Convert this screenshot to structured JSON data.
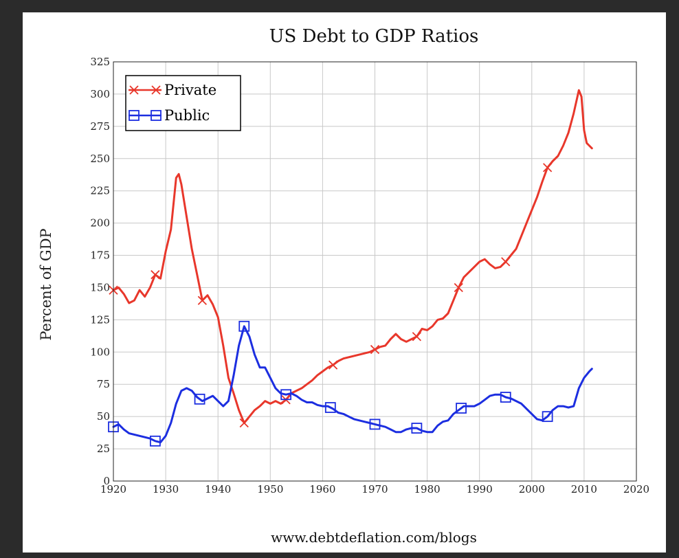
{
  "chart_data": {
    "type": "line",
    "title": "US Debt to GDP Ratios",
    "xlabel": "",
    "ylabel": "Percent of GDP",
    "source": "www.debtdeflation.com/blogs",
    "xlim": [
      1920,
      2020
    ],
    "ylim": [
      0,
      325
    ],
    "xticks": [
      1920,
      1930,
      1940,
      1950,
      1960,
      1970,
      1980,
      1990,
      2000,
      2010,
      2020
    ],
    "yticks": [
      0,
      25,
      50,
      75,
      100,
      125,
      150,
      175,
      200,
      225,
      250,
      275,
      300,
      325
    ],
    "grid": true,
    "legend_position": "top-left",
    "series": [
      {
        "name": "Private",
        "color": "#e8372b",
        "marker": "x",
        "points": [
          [
            1920,
            148
          ],
          [
            1921,
            150
          ],
          [
            1922,
            145
          ],
          [
            1923,
            138
          ],
          [
            1924,
            140
          ],
          [
            1925,
            148
          ],
          [
            1926,
            143
          ],
          [
            1927,
            150
          ],
          [
            1928,
            160
          ],
          [
            1929,
            157
          ],
          [
            1930,
            178
          ],
          [
            1931,
            195
          ],
          [
            1932,
            235
          ],
          [
            1932.5,
            238
          ],
          [
            1933,
            230
          ],
          [
            1934,
            205
          ],
          [
            1935,
            180
          ],
          [
            1936,
            160
          ],
          [
            1937,
            140
          ],
          [
            1938,
            144
          ],
          [
            1939,
            137
          ],
          [
            1940,
            127
          ],
          [
            1941,
            105
          ],
          [
            1942,
            80
          ],
          [
            1943,
            68
          ],
          [
            1944,
            55
          ],
          [
            1945,
            45
          ],
          [
            1946,
            50
          ],
          [
            1947,
            55
          ],
          [
            1948,
            58
          ],
          [
            1949,
            62
          ],
          [
            1950,
            60
          ],
          [
            1951,
            62
          ],
          [
            1952,
            60
          ],
          [
            1953,
            63
          ],
          [
            1954,
            68
          ],
          [
            1955,
            70
          ],
          [
            1956,
            72
          ],
          [
            1957,
            75
          ],
          [
            1958,
            78
          ],
          [
            1959,
            82
          ],
          [
            1960,
            85
          ],
          [
            1961,
            88
          ],
          [
            1962,
            90
          ],
          [
            1963,
            93
          ],
          [
            1964,
            95
          ],
          [
            1965,
            96
          ],
          [
            1966,
            97
          ],
          [
            1967,
            98
          ],
          [
            1968,
            99
          ],
          [
            1969,
            100
          ],
          [
            1970,
            102
          ],
          [
            1971,
            104
          ],
          [
            1972,
            105
          ],
          [
            1973,
            110
          ],
          [
            1974,
            114
          ],
          [
            1975,
            110
          ],
          [
            1976,
            108
          ],
          [
            1977,
            110
          ],
          [
            1978,
            112
          ],
          [
            1979,
            118
          ],
          [
            1980,
            117
          ],
          [
            1981,
            120
          ],
          [
            1982,
            125
          ],
          [
            1983,
            126
          ],
          [
            1984,
            130
          ],
          [
            1985,
            140
          ],
          [
            1986,
            150
          ],
          [
            1987,
            158
          ],
          [
            1988,
            162
          ],
          [
            1989,
            166
          ],
          [
            1990,
            170
          ],
          [
            1991,
            172
          ],
          [
            1992,
            168
          ],
          [
            1993,
            165
          ],
          [
            1994,
            166
          ],
          [
            1995,
            170
          ],
          [
            1996,
            175
          ],
          [
            1997,
            180
          ],
          [
            1998,
            190
          ],
          [
            1999,
            200
          ],
          [
            2000,
            210
          ],
          [
            2001,
            220
          ],
          [
            2002,
            232
          ],
          [
            2003,
            243
          ],
          [
            2004,
            248
          ],
          [
            2005,
            252
          ],
          [
            2006,
            260
          ],
          [
            2007,
            270
          ],
          [
            2008,
            285
          ],
          [
            2009,
            303
          ],
          [
            2009.5,
            298
          ],
          [
            2010,
            272
          ],
          [
            2010.5,
            262
          ],
          [
            2011,
            260
          ],
          [
            2011.5,
            258
          ]
        ],
        "markers_at": [
          1920,
          1928,
          1937,
          1945,
          1953,
          1962,
          1970,
          1978,
          1986,
          1995,
          2003
        ]
      },
      {
        "name": "Public",
        "color": "#1c2ee0",
        "marker": "square",
        "points": [
          [
            1920,
            42
          ],
          [
            1921,
            44
          ],
          [
            1922,
            40
          ],
          [
            1923,
            37
          ],
          [
            1924,
            36
          ],
          [
            1925,
            35
          ],
          [
            1926,
            34
          ],
          [
            1927,
            33
          ],
          [
            1928,
            31
          ],
          [
            1929,
            30
          ],
          [
            1930,
            35
          ],
          [
            1931,
            45
          ],
          [
            1932,
            60
          ],
          [
            1933,
            70
          ],
          [
            1934,
            72
          ],
          [
            1935,
            70
          ],
          [
            1936,
            65
          ],
          [
            1937,
            62
          ],
          [
            1938,
            64
          ],
          [
            1939,
            66
          ],
          [
            1940,
            62
          ],
          [
            1941,
            58
          ],
          [
            1942,
            62
          ],
          [
            1943,
            82
          ],
          [
            1944,
            105
          ],
          [
            1945,
            120
          ],
          [
            1946,
            112
          ],
          [
            1947,
            98
          ],
          [
            1948,
            88
          ],
          [
            1949,
            88
          ],
          [
            1950,
            80
          ],
          [
            1951,
            72
          ],
          [
            1952,
            68
          ],
          [
            1953,
            67
          ],
          [
            1954,
            68
          ],
          [
            1955,
            66
          ],
          [
            1956,
            63
          ],
          [
            1957,
            61
          ],
          [
            1958,
            61
          ],
          [
            1959,
            59
          ],
          [
            1960,
            58
          ],
          [
            1961,
            58
          ],
          [
            1962,
            56
          ],
          [
            1963,
            53
          ],
          [
            1964,
            52
          ],
          [
            1965,
            50
          ],
          [
            1966,
            48
          ],
          [
            1967,
            47
          ],
          [
            1968,
            46
          ],
          [
            1969,
            45
          ],
          [
            1970,
            44
          ],
          [
            1971,
            43
          ],
          [
            1972,
            42
          ],
          [
            1973,
            40
          ],
          [
            1974,
            38
          ],
          [
            1975,
            38
          ],
          [
            1976,
            40
          ],
          [
            1977,
            41
          ],
          [
            1978,
            41
          ],
          [
            1979,
            39
          ],
          [
            1980,
            38
          ],
          [
            1981,
            38
          ],
          [
            1982,
            43
          ],
          [
            1983,
            46
          ],
          [
            1984,
            47
          ],
          [
            1985,
            52
          ],
          [
            1986,
            55
          ],
          [
            1987,
            58
          ],
          [
            1988,
            58
          ],
          [
            1989,
            58
          ],
          [
            1990,
            60
          ],
          [
            1991,
            63
          ],
          [
            1992,
            66
          ],
          [
            1993,
            67
          ],
          [
            1994,
            67
          ],
          [
            1995,
            65
          ],
          [
            1996,
            64
          ],
          [
            1997,
            62
          ],
          [
            1998,
            60
          ],
          [
            1999,
            56
          ],
          [
            2000,
            52
          ],
          [
            2001,
            48
          ],
          [
            2002,
            47
          ],
          [
            2003,
            50
          ],
          [
            2004,
            55
          ],
          [
            2005,
            58
          ],
          [
            2006,
            58
          ],
          [
            2007,
            57
          ],
          [
            2008,
            58
          ],
          [
            2009,
            72
          ],
          [
            2010,
            80
          ],
          [
            2011,
            85
          ],
          [
            2011.5,
            87
          ]
        ],
        "markers_at": [
          1920,
          1928,
          1936.5,
          1945,
          1953,
          1961.5,
          1970,
          1978,
          1986.5,
          1995,
          2003
        ]
      }
    ]
  }
}
